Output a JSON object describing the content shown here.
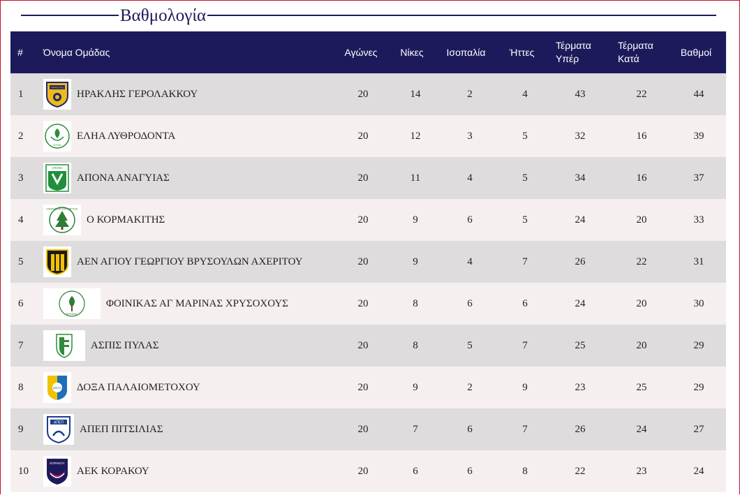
{
  "page": {
    "title": "Βαθμολογία"
  },
  "table": {
    "headers": {
      "pos": "#",
      "team": "Όνομα Ομάδας",
      "played": "Αγώνες",
      "wins": "Νίκες",
      "draws": "Ισοπαλία",
      "losses": "Ήττες",
      "gf_line1": "Τέρματα",
      "gf_line2": "Υπέρ",
      "ga_line1": "Τέρματα",
      "ga_line2": "Κατά",
      "points": "Βαθμοί"
    },
    "rows": [
      {
        "pos": "1",
        "team": "ΗΡΑΚΛΗΣ ΓΕΡΟΛΑΚΚΟΥ",
        "played": "20",
        "wins": "14",
        "draws": "2",
        "losses": "4",
        "gf": "43",
        "ga": "22",
        "pts": "44",
        "logo": "herakles-crest-icon"
      },
      {
        "pos": "2",
        "team": "ΕΛΗΑ ΛΥΘΡΟΔΟΝΤΑ",
        "played": "20",
        "wins": "12",
        "draws": "3",
        "losses": "5",
        "gf": "32",
        "ga": "16",
        "pts": "39",
        "logo": "elia-crest-icon"
      },
      {
        "pos": "3",
        "team": "ΑΠΟΝΑ ΑΝΑΓΥΙΑΣ",
        "played": "20",
        "wins": "11",
        "draws": "4",
        "losses": "5",
        "gf": "34",
        "ga": "16",
        "pts": "37",
        "logo": "apona-crest-icon"
      },
      {
        "pos": "4",
        "team": "Ο ΚΟΡΜΑΚΙΤΗΣ",
        "played": "20",
        "wins": "9",
        "draws": "6",
        "losses": "5",
        "gf": "24",
        "ga": "20",
        "pts": "33",
        "logo": "kormakitis-crest-icon"
      },
      {
        "pos": "5",
        "team": "ΑΕΝ ΑΓΙΟΥ ΓΕΩΡΓΙΟΥ ΒΡΥΣΟΥΛΩΝ ΑΧΕΡΙΤΟΥ",
        "played": "20",
        "wins": "9",
        "draws": "4",
        "losses": "7",
        "gf": "26",
        "ga": "22",
        "pts": "31",
        "logo": "aen-crest-icon"
      },
      {
        "pos": "6",
        "team": "ΦΟΙΝΙΚΑΣ ΑΓ ΜΑΡΙΝΑΣ ΧΡΥΣΟΧΟΥΣ",
        "played": "20",
        "wins": "8",
        "draws": "6",
        "losses": "6",
        "gf": "24",
        "ga": "20",
        "pts": "30",
        "logo": "foinikas-crest-icon"
      },
      {
        "pos": "7",
        "team": "ΑΣΠΙΣ ΠΥΛΑΣ",
        "played": "20",
        "wins": "8",
        "draws": "5",
        "losses": "7",
        "gf": "25",
        "ga": "20",
        "pts": "29",
        "logo": "aspis-crest-icon"
      },
      {
        "pos": "8",
        "team": "ΔΟΞΑ ΠΑΛΑΙΟΜΕΤΟΧΟΥ",
        "played": "20",
        "wins": "9",
        "draws": "2",
        "losses": "9",
        "gf": "23",
        "ga": "25",
        "pts": "29",
        "logo": "doxa-crest-icon"
      },
      {
        "pos": "9",
        "team": "ΑΠΕΠ ΠΙΤΣΙΛΙΑΣ",
        "played": "20",
        "wins": "7",
        "draws": "6",
        "losses": "7",
        "gf": "26",
        "ga": "24",
        "pts": "27",
        "logo": "apep-crest-icon"
      },
      {
        "pos": "10",
        "team": "ΑΕΚ ΚΟΡΑΚΟΥ",
        "played": "20",
        "wins": "6",
        "draws": "6",
        "losses": "8",
        "gf": "22",
        "ga": "23",
        "pts": "24",
        "logo": "aek-crest-icon"
      }
    ]
  },
  "logo_text": {
    "herakles": "ΗΡΑΚΛΗΣ",
    "elia": "ΕΛΗΑ",
    "apona": "ΑΠΟΝΑ",
    "kormakitis": "ΣΩΜΑΤΕΙΟΝ ΚΟΡΜΑΚΙΤΗΣ",
    "foinikas": "ΦΟΙΝΙΚΑΣ",
    "doxa": "ΔΟΞΑ",
    "apep": "ΑΠΕΠ",
    "aek": "ΚΟΡΑΚΟΥ"
  },
  "colors": {
    "header_bg": "#1d1a5c",
    "row_odd": "#dedcdd",
    "row_even": "#f6eff0",
    "frame_border": "#c8102e"
  }
}
